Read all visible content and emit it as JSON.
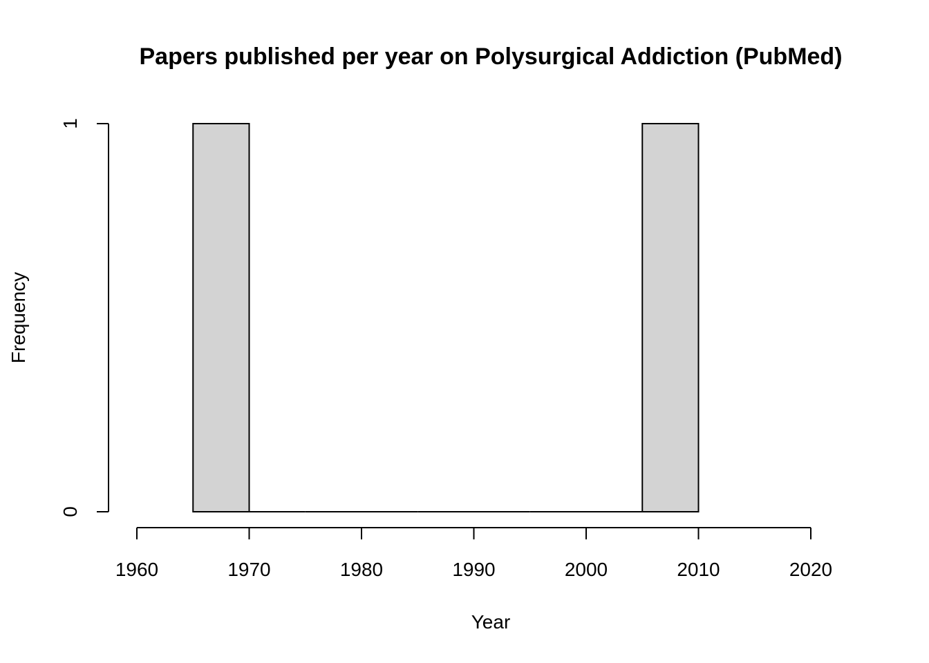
{
  "chart_data": {
    "type": "bar",
    "title": "Papers published per year on Polysurgical Addiction (PubMed)",
    "xlabel": "Year",
    "ylabel": "Frequency",
    "bins": [
      {
        "start": 1965,
        "end": 1970,
        "count": 1
      },
      {
        "start": 1970,
        "end": 1975,
        "count": 0
      },
      {
        "start": 1975,
        "end": 1980,
        "count": 0
      },
      {
        "start": 1980,
        "end": 1985,
        "count": 0
      },
      {
        "start": 1985,
        "end": 1990,
        "count": 0
      },
      {
        "start": 1990,
        "end": 1995,
        "count": 0
      },
      {
        "start": 1995,
        "end": 2000,
        "count": 0
      },
      {
        "start": 2000,
        "end": 2005,
        "count": 0
      },
      {
        "start": 2005,
        "end": 2010,
        "count": 1
      }
    ],
    "xlim": [
      1960,
      2020
    ],
    "ylim": [
      0,
      1
    ],
    "x_ticks": [
      "1960",
      "1970",
      "1980",
      "1990",
      "2000",
      "2010",
      "2020"
    ],
    "y_ticks": [
      "0",
      "1"
    ],
    "bar_color": "#d3d3d3",
    "border_color": "#000000",
    "grid": false,
    "legend": "none"
  }
}
